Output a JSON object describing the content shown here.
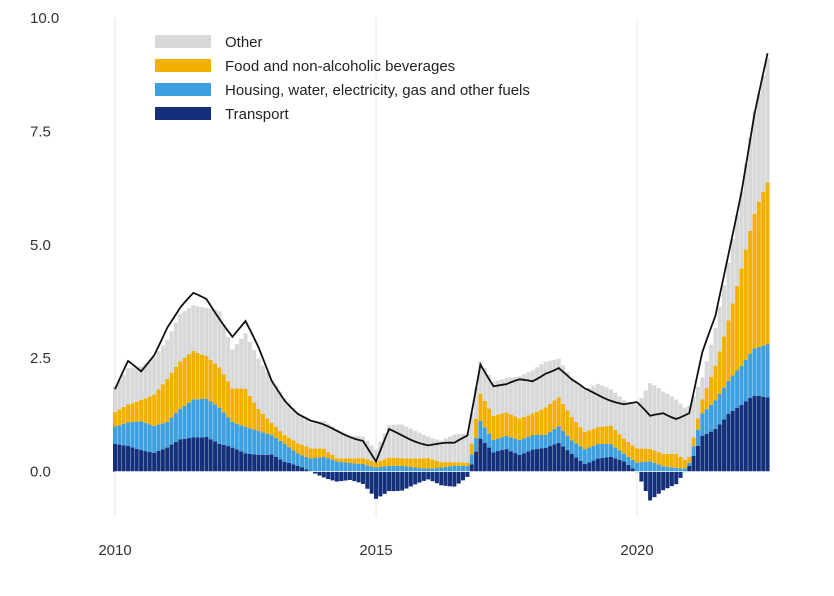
{
  "chart_data": {
    "type": "stacked-bar-with-line",
    "title": "",
    "xlabel": "",
    "ylabel": "",
    "xlim": [
      2010.0,
      2022.7
    ],
    "ylim": [
      -1.0,
      10.0
    ],
    "x_ticks": [
      2010,
      2015,
      2020
    ],
    "y_ticks": [
      0.0,
      2.5,
      5.0,
      7.5,
      10.0
    ],
    "y_tick_labels": [
      "0.0",
      "2.5",
      "5.0",
      "7.5",
      "10.0"
    ],
    "x_tick_labels": [
      "2010",
      "2015",
      "2020"
    ],
    "grid": "vertical",
    "legend_position": "top-left",
    "legend": [
      {
        "key": "other",
        "label": "Other"
      },
      {
        "key": "food",
        "label": "Food and non-alcoholic beverages"
      },
      {
        "key": "housing",
        "label": "Housing, water, electricity, gas and other fuels"
      },
      {
        "key": "transport",
        "label": "Transport"
      }
    ],
    "colors": {
      "other": "#d6d8d9",
      "food": "#f2b000",
      "housing": "#3fa0e0",
      "transport": "#15307a",
      "total": "#111111",
      "grid": "#e6e6e6",
      "axis": "#cfcfcf"
    },
    "total_line_name": "Total",
    "knots": {
      "x": [
        2010.0,
        2010.25,
        2010.5,
        2010.75,
        2011.0,
        2011.25,
        2011.5,
        2011.75,
        2012.0,
        2012.25,
        2012.5,
        2012.75,
        2013.0,
        2013.25,
        2013.5,
        2013.75,
        2014.0,
        2014.25,
        2014.5,
        2014.75,
        2015.0,
        2015.25,
        2015.5,
        2015.75,
        2016.0,
        2016.25,
        2016.5,
        2016.75,
        2017.0,
        2017.25,
        2017.5,
        2017.75,
        2018.0,
        2018.25,
        2018.5,
        2018.75,
        2019.0,
        2019.25,
        2019.5,
        2019.75,
        2020.0,
        2020.25,
        2020.5,
        2020.75,
        2021.0,
        2021.25,
        2021.5,
        2021.75,
        2022.0,
        2022.25,
        2022.6
      ],
      "transport": [
        0.6,
        0.6,
        0.5,
        0.4,
        0.5,
        0.7,
        0.8,
        0.8,
        0.6,
        0.5,
        0.4,
        0.4,
        0.4,
        0.2,
        0.1,
        0.0,
        -0.1,
        -0.2,
        -0.2,
        -0.3,
        -0.6,
        -0.4,
        -0.4,
        -0.3,
        -0.2,
        -0.3,
        -0.3,
        -0.1,
        0.7,
        0.4,
        0.5,
        0.4,
        0.5,
        0.5,
        0.6,
        0.4,
        0.2,
        0.3,
        0.3,
        0.2,
        0.0,
        -0.6,
        -0.4,
        -0.3,
        0.1,
        0.8,
        1.0,
        1.3,
        1.4,
        1.6,
        1.7
      ],
      "housing": [
        0.4,
        0.5,
        0.6,
        0.6,
        0.6,
        0.7,
        0.8,
        0.8,
        0.8,
        0.6,
        0.6,
        0.5,
        0.4,
        0.4,
        0.3,
        0.3,
        0.3,
        0.2,
        0.2,
        0.2,
        0.1,
        0.1,
        0.1,
        0.1,
        0.1,
        0.1,
        0.1,
        0.1,
        0.4,
        0.3,
        0.3,
        0.3,
        0.3,
        0.3,
        0.4,
        0.3,
        0.3,
        0.3,
        0.3,
        0.2,
        0.2,
        0.2,
        0.1,
        0.1,
        0.1,
        0.5,
        0.6,
        0.7,
        0.9,
        1.1,
        1.2
      ],
      "food": [
        0.3,
        0.4,
        0.5,
        0.7,
        0.9,
        1.0,
        1.1,
        1.0,
        0.9,
        0.7,
        0.8,
        0.5,
        0.3,
        0.2,
        0.2,
        0.2,
        0.2,
        0.1,
        0.1,
        0.1,
        0.1,
        0.2,
        0.2,
        0.2,
        0.2,
        0.1,
        0.1,
        0.1,
        0.6,
        0.5,
        0.5,
        0.5,
        0.5,
        0.6,
        0.6,
        0.5,
        0.4,
        0.4,
        0.4,
        0.3,
        0.3,
        0.3,
        0.3,
        0.3,
        0.1,
        0.3,
        0.8,
        1.4,
        2.1,
        2.8,
        3.8
      ],
      "other": [
        0.6,
        0.8,
        0.7,
        0.8,
        0.9,
        1.1,
        1.0,
        1.0,
        1.2,
        0.9,
        1.3,
        1.1,
        0.9,
        0.8,
        0.7,
        0.6,
        0.6,
        0.6,
        0.5,
        0.5,
        0.3,
        0.7,
        0.7,
        0.6,
        0.5,
        0.5,
        0.6,
        0.6,
        0.7,
        0.8,
        0.8,
        0.9,
        0.9,
        1.0,
        0.9,
        0.9,
        0.9,
        0.9,
        0.8,
        0.9,
        1.0,
        1.4,
        1.3,
        1.2,
        1.2,
        0.5,
        0.8,
        1.2,
        1.7,
        2.4,
        3.0
      ],
      "total": [
        1.8,
        2.4,
        2.2,
        2.6,
        3.2,
        3.6,
        3.9,
        3.8,
        3.4,
        3.0,
        3.3,
        2.7,
        2.0,
        1.6,
        1.3,
        1.1,
        1.0,
        0.9,
        0.8,
        0.7,
        0.2,
        0.9,
        0.8,
        0.7,
        0.6,
        0.6,
        0.6,
        0.8,
        2.4,
        1.9,
        1.9,
        2.0,
        2.0,
        2.2,
        2.3,
        2.0,
        1.8,
        1.7,
        1.6,
        1.5,
        1.5,
        1.2,
        1.3,
        1.2,
        1.3,
        2.6,
        3.4,
        4.8,
        6.2,
        7.9,
        9.7
      ]
    }
  }
}
